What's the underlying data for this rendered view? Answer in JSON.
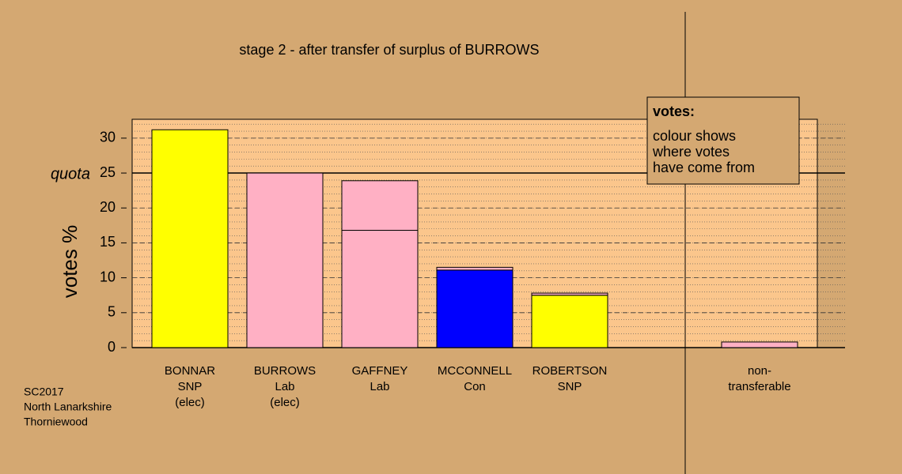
{
  "chart_data": {
    "type": "stacked-bar",
    "title": "stage 2 - after transfer of surplus of BURROWS",
    "y_label": "votes %",
    "categories": [
      [
        "BONNAR",
        "SNP",
        "(elec)"
      ],
      [
        "BURROWS",
        "Lab",
        "(elec)"
      ],
      [
        "GAFFNEY",
        "Lab"
      ],
      [
        "MCCONNELL",
        "Con"
      ],
      [
        "ROBERTSON",
        "SNP"
      ],
      null,
      [
        "non-",
        "transferable"
      ]
    ],
    "series": [
      {
        "color": [
          "#ffff00",
          "#ffb0c4",
          "#ffb0c4",
          "#0000ff",
          "#ffff00",
          null,
          null
        ],
        "values": [
          31.2,
          25.0,
          16.8,
          11.1,
          7.5,
          null,
          null
        ]
      },
      {
        "color": "#ffb0c4",
        "values": [
          null,
          null,
          7.1,
          0.4,
          0.3,
          null,
          0.8
        ]
      }
    ],
    "ylim": [
      0,
      32.7
    ],
    "yticks": [
      0,
      5,
      10,
      15,
      20,
      25,
      30
    ],
    "quota": {
      "value": 25,
      "label": "quota"
    },
    "minor_grid_step": 1,
    "grid": true,
    "note": {
      "title": "votes:",
      "lines": [
        "colour shows",
        "where votes",
        "have come from"
      ]
    },
    "footer": [
      "SC2017",
      "North Lanarkshire",
      "Thorniewood"
    ]
  }
}
